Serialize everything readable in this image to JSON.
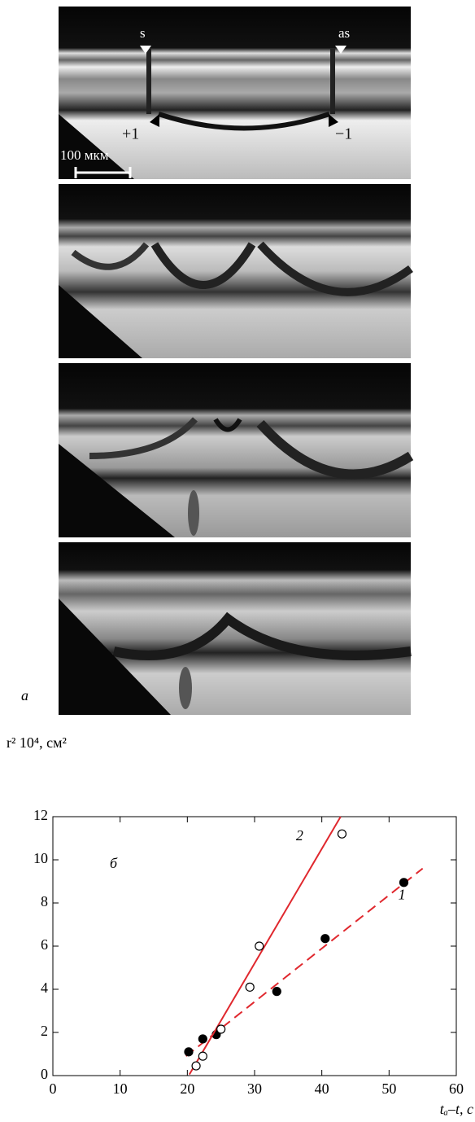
{
  "figure_labels": {
    "a": "a",
    "b": "б"
  },
  "micrographs": {
    "labels": [
      "s",
      "as",
      "+1",
      "−1"
    ],
    "scale_bar": "100 мкм"
  },
  "chart_data": {
    "type": "scatter",
    "y_label": "r² 10⁴, см²",
    "x_label": "tₐ–t, с",
    "xlim": [
      0,
      60
    ],
    "ylim": [
      0,
      12
    ],
    "xticks": [
      0,
      10,
      20,
      30,
      40,
      50,
      60
    ],
    "yticks": [
      0,
      2,
      4,
      6,
      8,
      10,
      12
    ],
    "series": [
      {
        "name": "1",
        "color": "#000000",
        "filled": true,
        "x": [
          20.2,
          22.3,
          24.3,
          33.3,
          40.5,
          52.2
        ],
        "y": [
          1.1,
          1.7,
          1.9,
          3.9,
          6.35,
          8.95
        ],
        "fit": {
          "color": "#e0282e",
          "dashed": true,
          "x": [
            19.8,
            55
          ],
          "y": [
            0.9,
            9.6
          ]
        }
      },
      {
        "name": "2",
        "color": "#000000",
        "filled": false,
        "x": [
          21.3,
          22.3,
          25,
          29.3,
          30.7,
          43
        ],
        "y": [
          0.45,
          0.9,
          2.15,
          4.1,
          6.0,
          11.2
        ],
        "fit": {
          "color": "#e0282e",
          "dashed": false,
          "x": [
            20.3,
            42.8
          ],
          "y": [
            0.05,
            12
          ]
        }
      }
    ]
  }
}
